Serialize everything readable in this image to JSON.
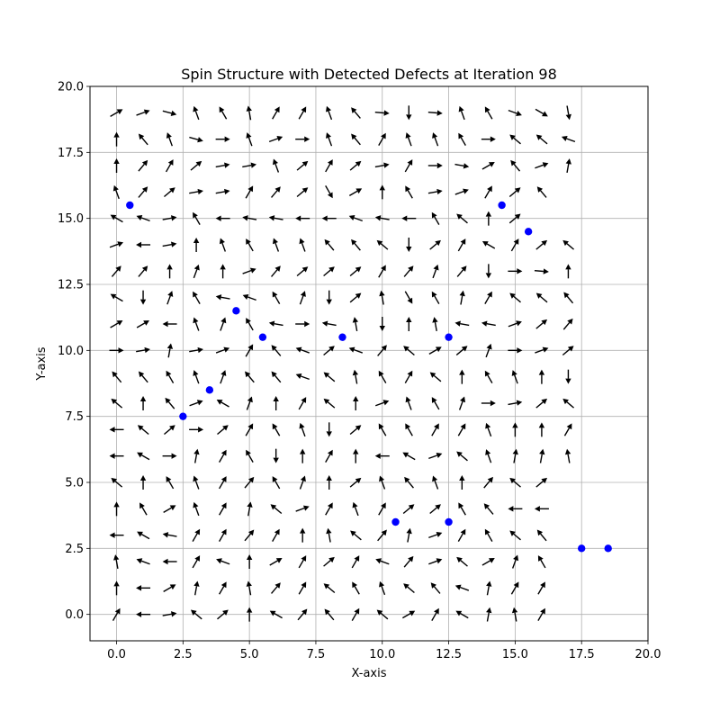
{
  "chart_data": {
    "type": "scatter",
    "title": "Spin Structure with Detected Defects at Iteration 98",
    "xlabel": "X-axis",
    "ylabel": "Y-axis",
    "xlim": [
      -1,
      20
    ],
    "ylim": [
      -1,
      20
    ],
    "grid": true,
    "x_ticks": [
      "0.0",
      "2.5",
      "5.0",
      "7.5",
      "10.0",
      "12.5",
      "15.0",
      "17.5",
      "20.0"
    ],
    "y_ticks": [
      "0.0",
      "2.5",
      "5.0",
      "7.5",
      "10.0",
      "12.5",
      "15.0",
      "17.5",
      "20.0"
    ],
    "x_tick_values": [
      0,
      2.5,
      5,
      7.5,
      10,
      12.5,
      15,
      17.5,
      20
    ],
    "y_tick_values": [
      0,
      2.5,
      5,
      7.5,
      10,
      12.5,
      15,
      17.5,
      20
    ],
    "spin_field": {
      "grid_x": [
        0,
        19
      ],
      "grid_y": [
        0,
        19
      ],
      "color": "#000000",
      "angles_deg_rows_top_to_bottom": [
        [
          30,
          20,
          -15,
          110,
          120,
          100,
          60,
          60,
          110,
          130,
          -5,
          270,
          -5,
          110,
          120,
          -20,
          -30,
          280
        ],
        [
          90,
          130,
          110,
          -15,
          0,
          110,
          20,
          0,
          110,
          130,
          60,
          110,
          110,
          120,
          0,
          140,
          140,
          160
        ],
        [
          90,
          50,
          60,
          40,
          10,
          10,
          110,
          40,
          60,
          40,
          10,
          60,
          0,
          -10,
          30,
          130,
          20,
          80
        ],
        [
          110,
          50,
          40,
          10,
          10,
          60,
          50,
          40,
          300,
          30,
          90,
          120,
          10,
          20,
          60,
          40,
          130
        ],
        [
          150,
          160,
          10,
          120,
          180,
          170,
          170,
          180,
          180,
          160,
          170,
          180,
          120,
          140,
          90,
          40
        ],
        [
          20,
          180,
          10,
          90,
          110,
          120,
          110,
          110,
          130,
          130,
          140,
          270,
          40,
          60,
          150,
          60,
          40,
          140
        ],
        [
          50,
          50,
          90,
          70,
          90,
          20,
          50,
          40,
          40,
          40,
          60,
          50,
          70,
          50,
          270,
          0,
          -5,
          90
        ],
        [
          150,
          270,
          70,
          120,
          170,
          160,
          120,
          70,
          270,
          40,
          100,
          300,
          120,
          80,
          60,
          140,
          140,
          130
        ],
        [
          30,
          30,
          180,
          110,
          70,
          120,
          170,
          0,
          170,
          100,
          270,
          90,
          100,
          170,
          170,
          20,
          40,
          50
        ],
        [
          0,
          10,
          80,
          10,
          20,
          60,
          130,
          160,
          40,
          160,
          50,
          140,
          30,
          40,
          70,
          0,
          20,
          40
        ],
        [
          130,
          130,
          120,
          110,
          70,
          130,
          130,
          160,
          140,
          100,
          120,
          60,
          140,
          90,
          120,
          110,
          90,
          270
        ],
        [
          140,
          90,
          130,
          20,
          150,
          70,
          90,
          60,
          140,
          90,
          20,
          110,
          120,
          70,
          0,
          10,
          40,
          140
        ],
        [
          180,
          140,
          40,
          0,
          40,
          60,
          120,
          110,
          270,
          40,
          120,
          120,
          60,
          60,
          110,
          90,
          90,
          60
        ],
        [
          180,
          150,
          0,
          80,
          60,
          120,
          270,
          90,
          60,
          90,
          180,
          150,
          20,
          140,
          110,
          80,
          80,
          100
        ],
        [
          140,
          90,
          120,
          110,
          60,
          50,
          120,
          70,
          90,
          40,
          110,
          130,
          110,
          90,
          50,
          140,
          40
        ],
        [
          90,
          120,
          30,
          110,
          60,
          80,
          140,
          20,
          60,
          110,
          60,
          40,
          40,
          120,
          130,
          180,
          180
        ],
        [
          180,
          150,
          170,
          60,
          60,
          50,
          60,
          90,
          100,
          140,
          50,
          80,
          20,
          60,
          120,
          140,
          130
        ],
        [
          100,
          160,
          180,
          60,
          160,
          90,
          30,
          60,
          40,
          60,
          160,
          50,
          20,
          140,
          30,
          70,
          120
        ],
        [
          90,
          180,
          30,
          80,
          60,
          100,
          50,
          60,
          140,
          120,
          110,
          140,
          130,
          160,
          80,
          60,
          60
        ],
        [
          60,
          180,
          10,
          140,
          40,
          90,
          150,
          50,
          130,
          60,
          140,
          30,
          60,
          150,
          80,
          100,
          60
        ]
      ]
    },
    "series": [
      {
        "marker": "circle",
        "color": "#0000ff",
        "points": [
          [
            0.5,
            15.5
          ],
          [
            14.5,
            15.5
          ],
          [
            15.5,
            14.5
          ],
          [
            4.5,
            11.5
          ],
          [
            5.5,
            10.5
          ],
          [
            8.5,
            10.5
          ],
          [
            12.5,
            10.5
          ],
          [
            3.5,
            8.5
          ],
          [
            2.5,
            7.5
          ],
          [
            10.5,
            3.5
          ],
          [
            12.5,
            3.5
          ],
          [
            17.5,
            2.5
          ],
          [
            18.5,
            2.5
          ]
        ]
      }
    ]
  }
}
